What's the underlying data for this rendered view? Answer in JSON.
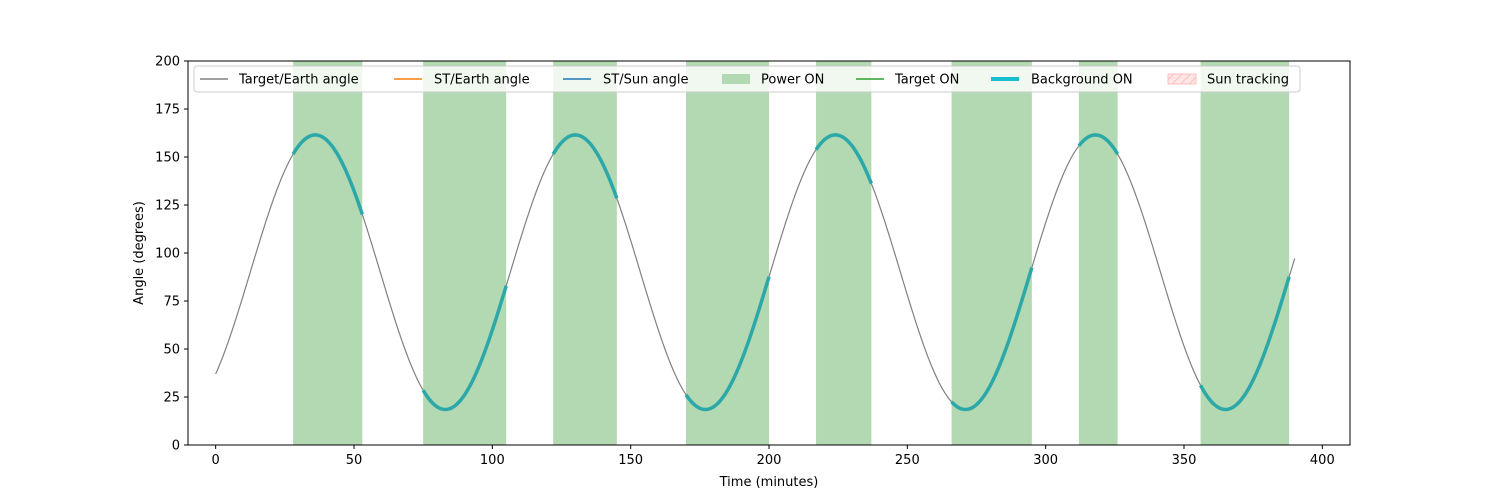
{
  "chart_data": {
    "type": "line",
    "xlabel": "Time (minutes)",
    "ylabel": "Angle (degrees)",
    "xlim": [
      -10,
      410
    ],
    "ylim": [
      0,
      200
    ],
    "xticks": [
      0,
      50,
      100,
      150,
      200,
      250,
      300,
      350,
      400
    ],
    "yticks": [
      0,
      25,
      50,
      75,
      100,
      125,
      150,
      175,
      200
    ],
    "grid": false,
    "legend_location": "upper-center",
    "curve": {
      "name": "Target/Earth angle",
      "x_start": 0,
      "x_end": 390,
      "center": 90,
      "amplitude": 71.5,
      "period": 94,
      "phase_peak_x": 36,
      "color": "#808080"
    },
    "power_on_intervals": [
      [
        28,
        53
      ],
      [
        75,
        105
      ],
      [
        122,
        145
      ],
      [
        170,
        200
      ],
      [
        217,
        237
      ],
      [
        266,
        295
      ],
      [
        312,
        326
      ],
      [
        356,
        388
      ]
    ],
    "background_on_intervals": [
      [
        28,
        53
      ],
      [
        75,
        105
      ],
      [
        122,
        145
      ],
      [
        170,
        200
      ],
      [
        217,
        237
      ],
      [
        266,
        295
      ],
      [
        312,
        326
      ],
      [
        356,
        388
      ]
    ],
    "series": [
      {
        "name": "Target/Earth angle",
        "color": "#808080",
        "kind": "line"
      },
      {
        "name": "ST/Earth angle",
        "color": "#ff7f0e",
        "kind": "line"
      },
      {
        "name": "ST/Sun angle",
        "color": "#1f77b4",
        "kind": "line"
      },
      {
        "name": "Power ON",
        "color": "#b2d9b2",
        "kind": "patch"
      },
      {
        "name": "Target ON",
        "color": "#2ca02c",
        "kind": "line"
      },
      {
        "name": "Background ON",
        "color": "#17becf",
        "kind": "thickline"
      },
      {
        "name": "Sun tracking",
        "color": "#ffcccc",
        "kind": "hatchpatch"
      }
    ]
  }
}
